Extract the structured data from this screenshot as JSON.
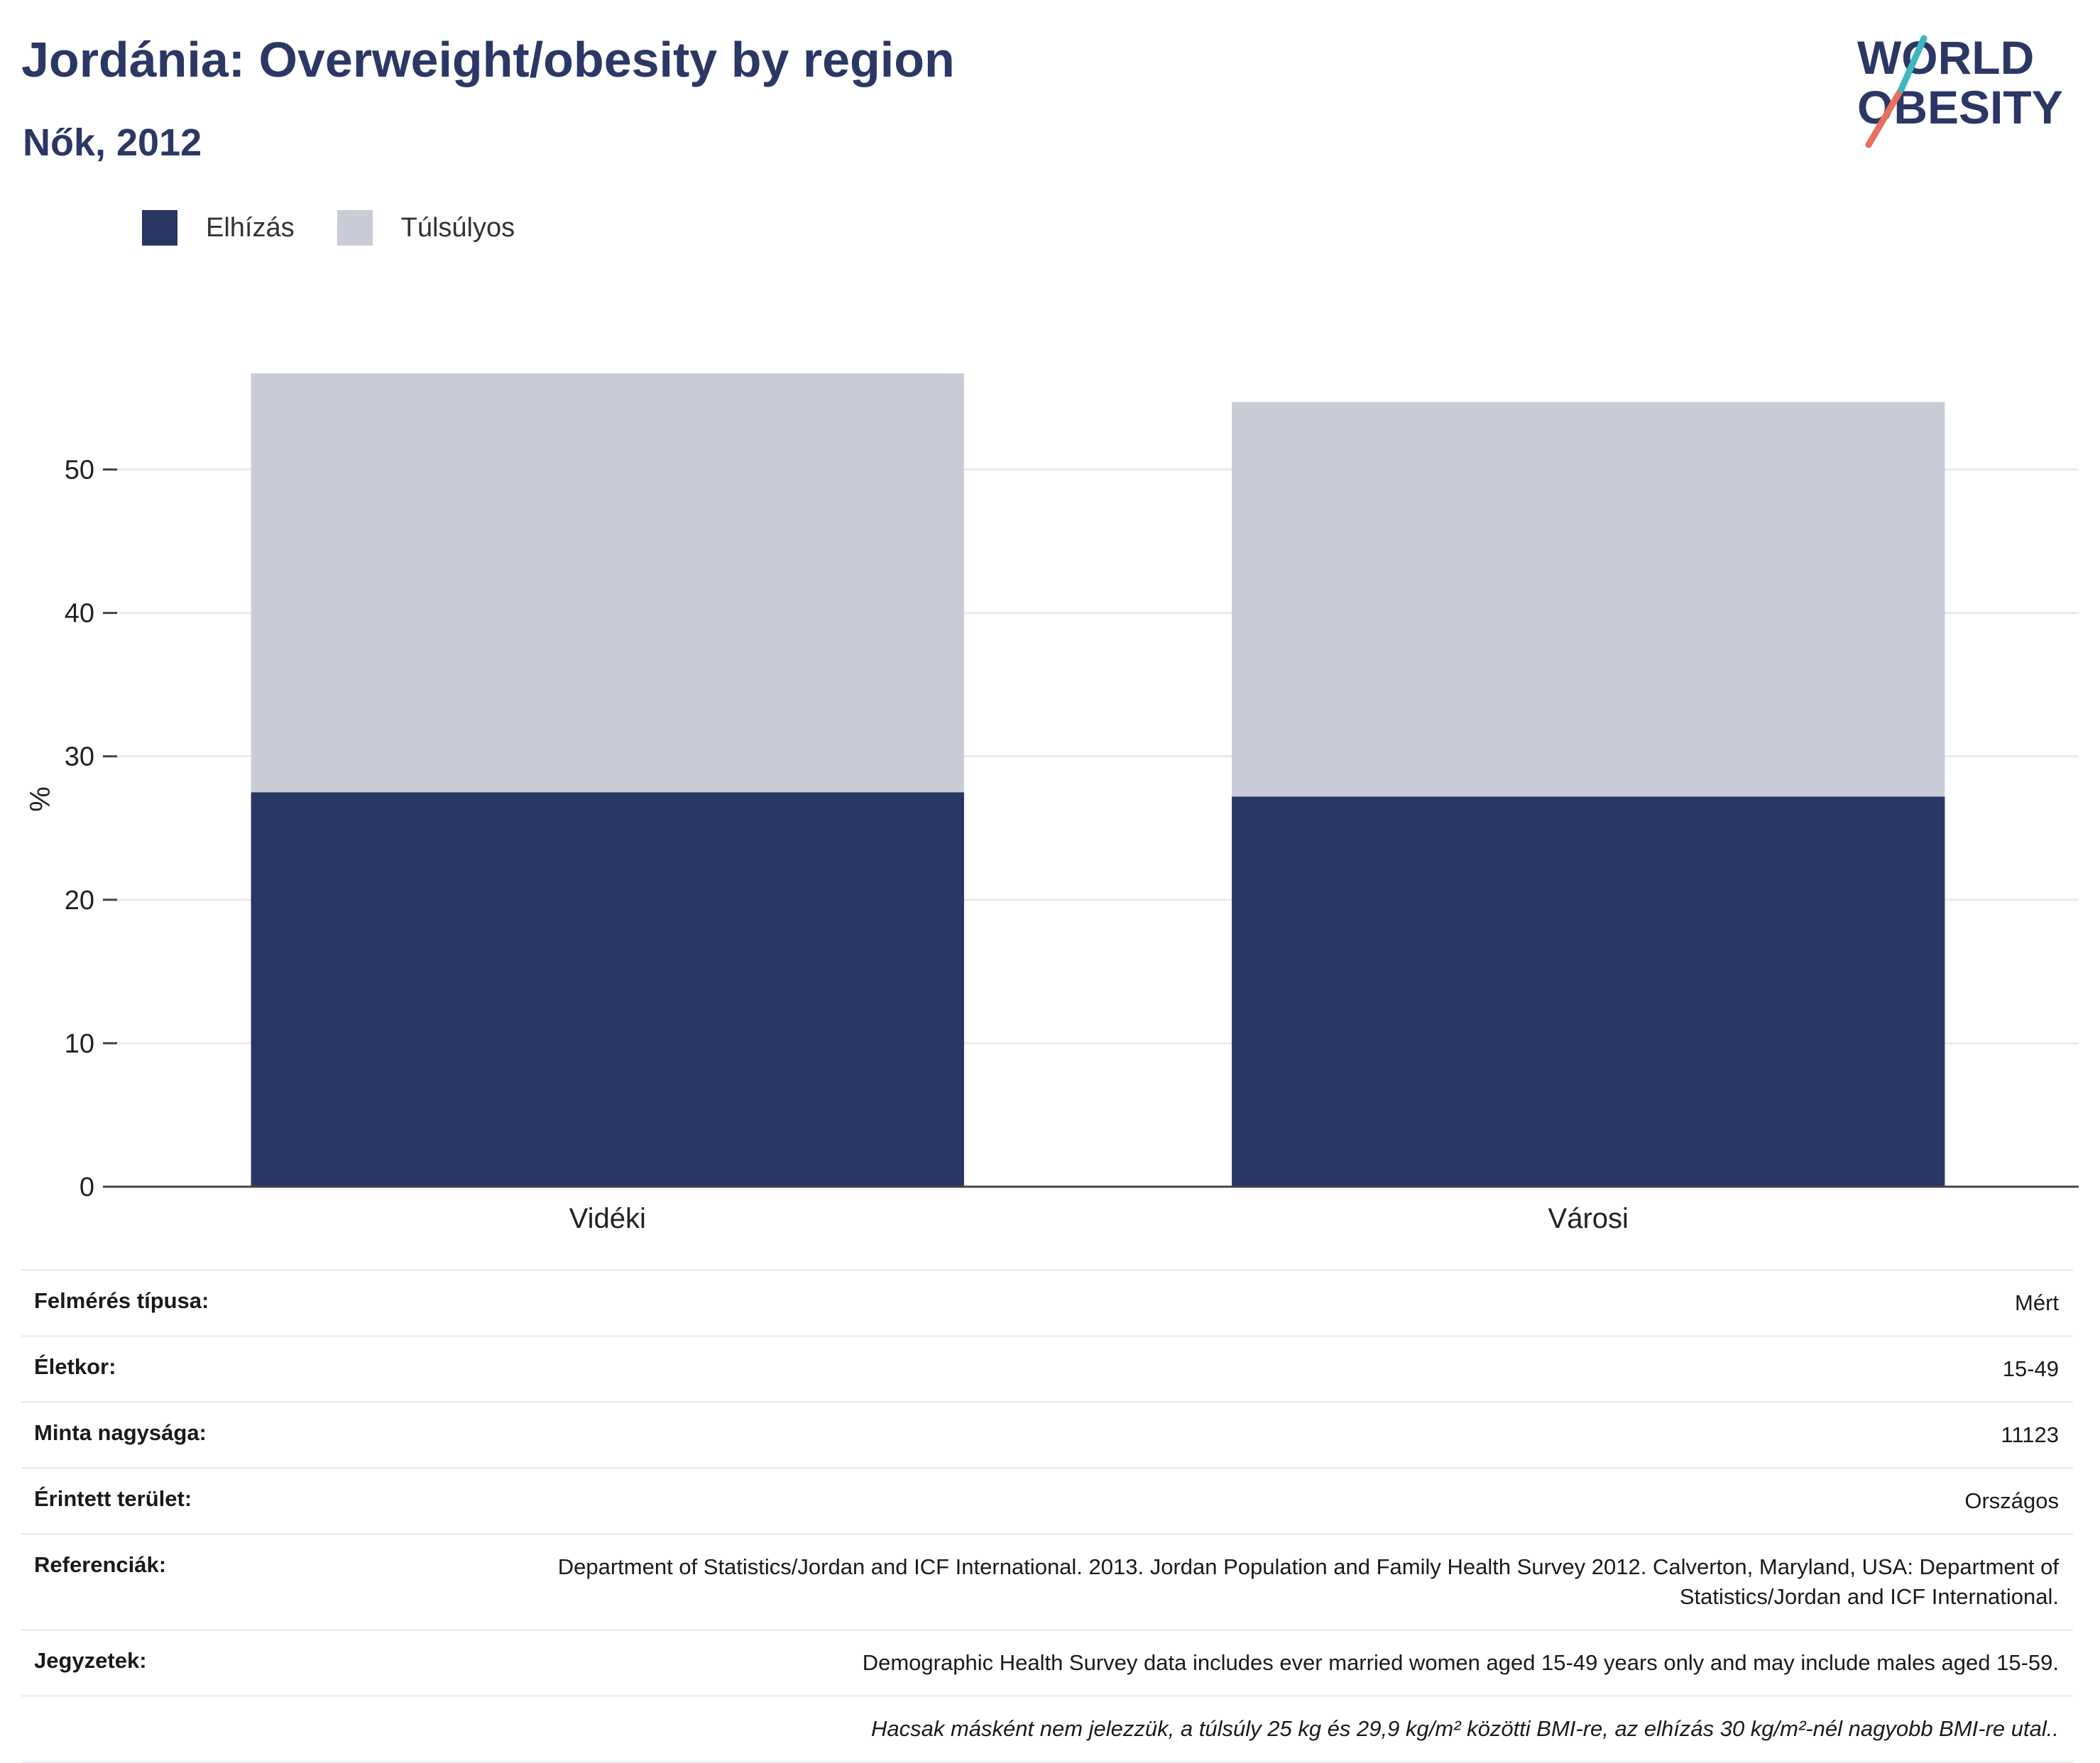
{
  "header": {
    "title": "Jordánia: Overweight/obesity by region",
    "subtitle": "Nők, 2012"
  },
  "logo": {
    "line1": "WORLD",
    "line2": "OBESITY"
  },
  "legend": [
    {
      "label": "Elhízás",
      "color": "#2a3663"
    },
    {
      "label": "Túlsúlyos",
      "color": "#c9ccd7"
    }
  ],
  "chart_data": {
    "type": "bar",
    "stacked": true,
    "categories": [
      "Vidéki",
      "Városi"
    ],
    "series": [
      {
        "name": "Elhízás",
        "values": [
          27.5,
          27.2
        ],
        "color": "#2a3663"
      },
      {
        "name": "Túlsúlyos",
        "values": [
          29.2,
          27.5
        ],
        "color": "#c9ccd7"
      }
    ],
    "ylabel": "%",
    "ylim": [
      0,
      57
    ],
    "yticks": [
      0,
      10,
      20,
      30,
      40,
      50
    ],
    "grid": true
  },
  "info": [
    {
      "label": "Felmérés típusa:",
      "value": "Mért"
    },
    {
      "label": "Életkor:",
      "value": "15-49"
    },
    {
      "label": "Minta nagysága:",
      "value": "11123"
    },
    {
      "label": "Érintett terület:",
      "value": "Országos"
    },
    {
      "label": "Referenciák:",
      "value": "Department of Statistics/Jordan and ICF International. 2013. Jordan Population and Family Health Survey 2012. Calverton, Maryland, USA: Department of Statistics/Jordan and ICF International."
    },
    {
      "label": "Jegyzetek:",
      "value": "Demographic Health Survey data includes ever married women aged 15-49 years only and may include males aged 15-59."
    }
  ],
  "footnote": "Hacsak másként nem jelezzük, a túlsúly 25 kg és 29,9 kg/m² közötti BMI-re, az elhízás 30 kg/m²-nél nagyobb BMI-re utal.."
}
